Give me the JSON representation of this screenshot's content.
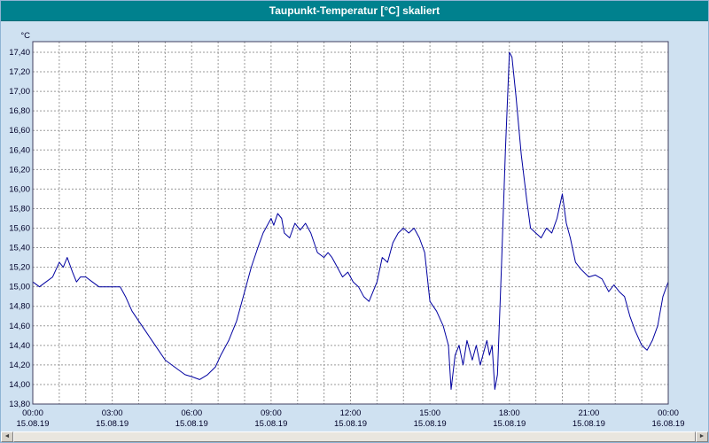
{
  "window": {
    "title": "Taupunkt-Temperatur [°C] skaliert"
  },
  "colors": {
    "titlebar": "#00818e",
    "title_text": "#ffffff",
    "background": "#cfe1f1",
    "plot_bg": "#ffffff",
    "grid": "#9a9a9a",
    "frame": "#404060",
    "axis_text": "#000028",
    "line": "#0000a0"
  },
  "chart_data": {
    "type": "line",
    "title": "Taupunkt-Temperatur [°C] skaliert",
    "y_unit": "°C",
    "ylabel": "",
    "xlabel": "",
    "ylim": [
      13.8,
      17.4
    ],
    "y_tick_step": 0.2,
    "xlim_hours": [
      0,
      24
    ],
    "minor_x_grid_hours": 1,
    "grid": "dashed",
    "legend": "none",
    "x_major_ticks": [
      {
        "hour": 0,
        "time": "00:00",
        "date": "15.08.19"
      },
      {
        "hour": 3,
        "time": "03:00",
        "date": "15.08.19"
      },
      {
        "hour": 6,
        "time": "06:00",
        "date": "15.08.19"
      },
      {
        "hour": 9,
        "time": "09:00",
        "date": "15.08.19"
      },
      {
        "hour": 12,
        "time": "12:00",
        "date": "15.08.19"
      },
      {
        "hour": 15,
        "time": "15:00",
        "date": "15.08.19"
      },
      {
        "hour": 18,
        "time": "18:00",
        "date": "15.08.19"
      },
      {
        "hour": 21,
        "time": "21:00",
        "date": "15.08.19"
      },
      {
        "hour": 24,
        "time": "00:00",
        "date": "16.08.19"
      }
    ],
    "series": [
      {
        "name": "Taupunkt-Temperatur",
        "points": [
          [
            0,
            15.05
          ],
          [
            0.25,
            15.0
          ],
          [
            0.5,
            15.05
          ],
          [
            0.75,
            15.1
          ],
          [
            1,
            15.25
          ],
          [
            1.15,
            15.2
          ],
          [
            1.3,
            15.3
          ],
          [
            1.5,
            15.15
          ],
          [
            1.65,
            15.05
          ],
          [
            1.8,
            15.1
          ],
          [
            2,
            15.1
          ],
          [
            2.25,
            15.05
          ],
          [
            2.5,
            15.0
          ],
          [
            3,
            15.0
          ],
          [
            3.3,
            15.0
          ],
          [
            3.5,
            14.9
          ],
          [
            3.75,
            14.75
          ],
          [
            4,
            14.65
          ],
          [
            4.25,
            14.55
          ],
          [
            4.5,
            14.45
          ],
          [
            4.75,
            14.35
          ],
          [
            5,
            14.25
          ],
          [
            5.25,
            14.2
          ],
          [
            5.5,
            14.15
          ],
          [
            5.75,
            14.1
          ],
          [
            6,
            14.08
          ],
          [
            6.3,
            14.05
          ],
          [
            6.6,
            14.1
          ],
          [
            6.9,
            14.18
          ],
          [
            7.1,
            14.3
          ],
          [
            7.4,
            14.45
          ],
          [
            7.7,
            14.65
          ],
          [
            8,
            14.95
          ],
          [
            8.25,
            15.2
          ],
          [
            8.5,
            15.4
          ],
          [
            8.7,
            15.55
          ],
          [
            9,
            15.7
          ],
          [
            9.1,
            15.63
          ],
          [
            9.25,
            15.75
          ],
          [
            9.4,
            15.7
          ],
          [
            9.5,
            15.55
          ],
          [
            9.7,
            15.5
          ],
          [
            9.9,
            15.65
          ],
          [
            10.1,
            15.58
          ],
          [
            10.3,
            15.65
          ],
          [
            10.5,
            15.55
          ],
          [
            10.75,
            15.35
          ],
          [
            11,
            15.3
          ],
          [
            11.15,
            15.35
          ],
          [
            11.3,
            15.3
          ],
          [
            11.5,
            15.2
          ],
          [
            11.7,
            15.1
          ],
          [
            11.9,
            15.15
          ],
          [
            12.1,
            15.05
          ],
          [
            12.3,
            15.0
          ],
          [
            12.5,
            14.9
          ],
          [
            12.7,
            14.85
          ],
          [
            13,
            15.05
          ],
          [
            13.2,
            15.3
          ],
          [
            13.4,
            15.25
          ],
          [
            13.6,
            15.45
          ],
          [
            13.8,
            15.55
          ],
          [
            14,
            15.6
          ],
          [
            14.2,
            15.55
          ],
          [
            14.4,
            15.6
          ],
          [
            14.6,
            15.5
          ],
          [
            14.8,
            15.35
          ],
          [
            15,
            14.85
          ],
          [
            15.25,
            14.75
          ],
          [
            15.5,
            14.6
          ],
          [
            15.7,
            14.4
          ],
          [
            15.8,
            13.95
          ],
          [
            15.95,
            14.3
          ],
          [
            16.1,
            14.4
          ],
          [
            16.25,
            14.2
          ],
          [
            16.4,
            14.45
          ],
          [
            16.6,
            14.25
          ],
          [
            16.75,
            14.4
          ],
          [
            16.9,
            14.2
          ],
          [
            17.05,
            14.35
          ],
          [
            17.15,
            14.45
          ],
          [
            17.25,
            14.3
          ],
          [
            17.35,
            14.4
          ],
          [
            17.45,
            13.95
          ],
          [
            17.55,
            14.1
          ],
          [
            17.7,
            15.2
          ],
          [
            17.85,
            16.4
          ],
          [
            18,
            17.4
          ],
          [
            18.1,
            17.35
          ],
          [
            18.25,
            16.95
          ],
          [
            18.45,
            16.35
          ],
          [
            18.65,
            15.9
          ],
          [
            18.8,
            15.6
          ],
          [
            19,
            15.55
          ],
          [
            19.2,
            15.5
          ],
          [
            19.4,
            15.6
          ],
          [
            19.6,
            15.55
          ],
          [
            19.8,
            15.7
          ],
          [
            20,
            15.95
          ],
          [
            20.15,
            15.65
          ],
          [
            20.3,
            15.5
          ],
          [
            20.5,
            15.25
          ],
          [
            20.7,
            15.18
          ],
          [
            21,
            15.1
          ],
          [
            21.25,
            15.12
          ],
          [
            21.5,
            15.08
          ],
          [
            21.75,
            14.95
          ],
          [
            21.95,
            15.02
          ],
          [
            22.15,
            14.95
          ],
          [
            22.35,
            14.9
          ],
          [
            22.55,
            14.7
          ],
          [
            22.75,
            14.55
          ],
          [
            23,
            14.4
          ],
          [
            23.2,
            14.35
          ],
          [
            23.4,
            14.45
          ],
          [
            23.6,
            14.6
          ],
          [
            23.8,
            14.9
          ],
          [
            24,
            15.05
          ]
        ]
      }
    ]
  },
  "scrollbar": {
    "left_arrow": "◄",
    "right_arrow": "►"
  }
}
